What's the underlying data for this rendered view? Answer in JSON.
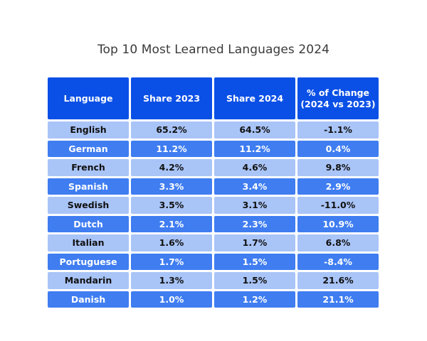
{
  "chart_data": {
    "type": "table",
    "title": "Top 10 Most Learned Languages 2024",
    "columns": [
      "Language",
      "Share 2023",
      "Share 2024",
      "% of Change\n(2024 vs 2023)"
    ],
    "rows": [
      [
        "English",
        "65.2%",
        "64.5%",
        "-1.1%"
      ],
      [
        "German",
        "11.2%",
        "11.2%",
        "0.4%"
      ],
      [
        "French",
        "4.2%",
        "4.6%",
        "9.8%"
      ],
      [
        "Spanish",
        "3.3%",
        "3.4%",
        "2.9%"
      ],
      [
        "Swedish",
        "3.5%",
        "3.1%",
        "-11.0%"
      ],
      [
        "Dutch",
        "2.1%",
        "2.3%",
        "10.9%"
      ],
      [
        "Italian",
        "1.6%",
        "1.7%",
        "6.8%"
      ],
      [
        "Portuguese",
        "1.7%",
        "1.5%",
        "-8.4%"
      ],
      [
        "Mandarin",
        "1.3%",
        "1.5%",
        "21.6%"
      ],
      [
        "Danish",
        "1.0%",
        "1.2%",
        "21.1%"
      ]
    ],
    "colors": {
      "header": "#0b50e6",
      "row_light": "#a9c4f7",
      "row_dark": "#3f7df1"
    }
  }
}
